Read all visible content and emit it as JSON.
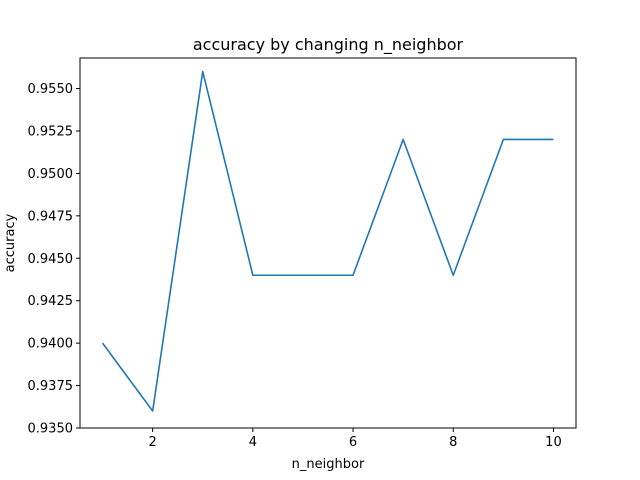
{
  "chart_data": {
    "type": "line",
    "title": "accuracy by changing n_neighbor",
    "xlabel": "n_neighbor",
    "ylabel": "accuracy",
    "xlim": [
      0.55,
      10.45
    ],
    "ylim": [
      0.935,
      0.9568
    ],
    "xticks": [
      2,
      4,
      6,
      8,
      10
    ],
    "xtick_labels": [
      "2",
      "4",
      "6",
      "8",
      "10"
    ],
    "yticks": [
      0.935,
      0.9375,
      0.94,
      0.9425,
      0.945,
      0.9475,
      0.95,
      0.9525,
      0.955
    ],
    "ytick_labels": [
      "0.9350",
      "0.9375",
      "0.9400",
      "0.9425",
      "0.9450",
      "0.9475",
      "0.9500",
      "0.9525",
      "0.9550"
    ],
    "grid": false,
    "series": [
      {
        "color": "#1f77b4",
        "x": [
          1,
          2,
          3,
          4,
          5,
          6,
          7,
          8,
          9,
          10
        ],
        "y": [
          0.94,
          0.936,
          0.956,
          0.944,
          0.944,
          0.944,
          0.952,
          0.944,
          0.952,
          0.952
        ]
      }
    ]
  }
}
